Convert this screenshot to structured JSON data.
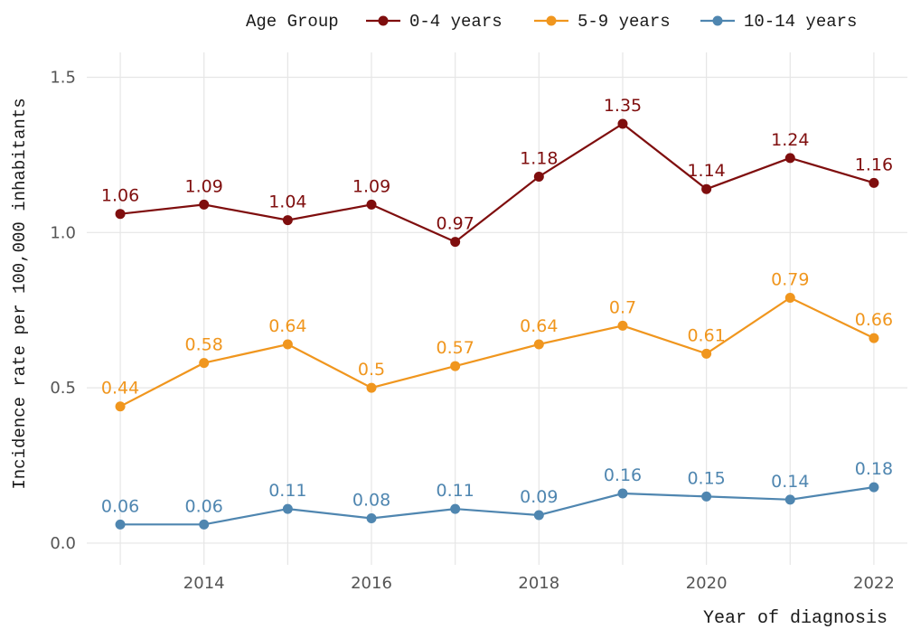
{
  "chart_data": {
    "type": "line",
    "xlabel": "Year of diagnosis",
    "ylabel": "Incidence rate per 100,000 inhabitants",
    "legend_title": "Age Group",
    "legend_position": "top",
    "grid": true,
    "xlim": [
      2012.6,
      2022.4
    ],
    "ylim": [
      -0.07,
      1.58
    ],
    "xticks": [
      2014,
      2016,
      2018,
      2020,
      2022
    ],
    "yticks": [
      0.0,
      0.5,
      1.0,
      1.5
    ],
    "ytick_labels": [
      "0.0",
      "0.5",
      "1.0",
      "1.5"
    ],
    "x": [
      2013,
      2014,
      2015,
      2016,
      2017,
      2018,
      2019,
      2020,
      2021,
      2022
    ],
    "series": [
      {
        "name": "0-4 years",
        "color": "#7f0e0e",
        "values": [
          1.06,
          1.09,
          1.04,
          1.09,
          0.97,
          1.18,
          1.35,
          1.14,
          1.24,
          1.16
        ],
        "labels": [
          "1.06",
          "1.09",
          "1.04",
          "1.09",
          "0.97",
          "1.18",
          "1.35",
          "1.14",
          "1.24",
          "1.16"
        ]
      },
      {
        "name": "5-9 years",
        "color": "#f0961e",
        "values": [
          0.44,
          0.58,
          0.64,
          0.5,
          0.57,
          0.64,
          0.7,
          0.61,
          0.79,
          0.66
        ],
        "labels": [
          "0.44",
          "0.58",
          "0.64",
          "0.5",
          "0.57",
          "0.64",
          "0.7",
          "0.61",
          "0.79",
          "0.66"
        ]
      },
      {
        "name": "10-14 years",
        "color": "#4f86b0",
        "values": [
          0.06,
          0.06,
          0.11,
          0.08,
          0.11,
          0.09,
          0.16,
          0.15,
          0.14,
          0.18
        ],
        "labels": [
          "0.06",
          "0.06",
          "0.11",
          "0.08",
          "0.11",
          "0.09",
          "0.16",
          "0.15",
          "0.14",
          "0.18"
        ]
      }
    ]
  }
}
